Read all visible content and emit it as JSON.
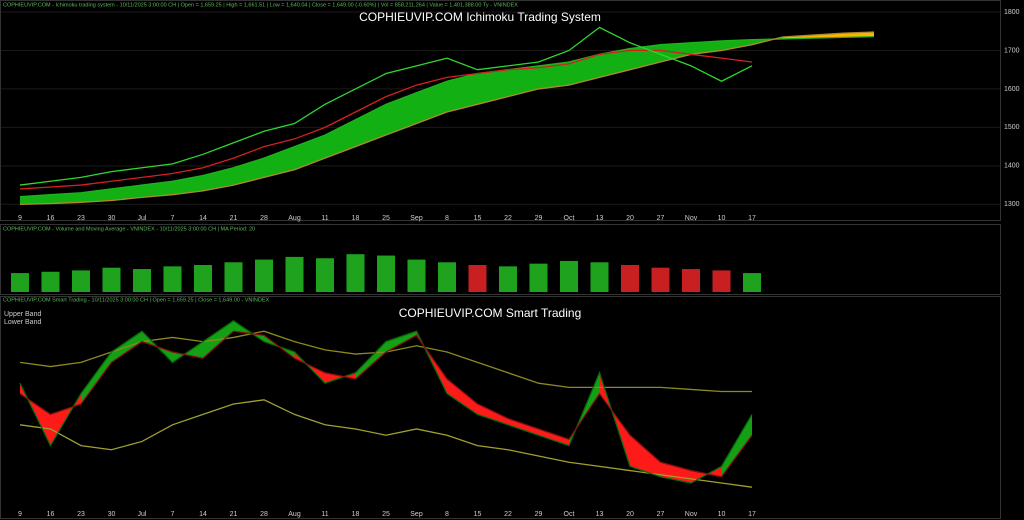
{
  "chart_data": [
    {
      "type": "line",
      "title": "COPHIEUVIP.COM Ichimoku Trading System",
      "header": "COPHIEUVIP.COM - Ichimoku trading system - 10/11/2025 3:00:00 CH | Open = 1,659.25 | High = 1,661.51 | Low = 1,640.04 | Close = 1,649.00 (-0.60%) | Vol = 858,211,264 | Value = 1,401,388.00 Ty - VNINDEX",
      "categories": [
        "9",
        "16",
        "23",
        "30",
        "Jul",
        "7",
        "14",
        "21",
        "28",
        "Aug",
        "11",
        "18",
        "25",
        "Sep",
        "8",
        "15",
        "22",
        "29",
        "Oct",
        "13",
        "20",
        "27",
        "Nov",
        "10",
        "17",
        null,
        null,
        null,
        null,
        null,
        null,
        null
      ],
      "ylim": [
        1280,
        1800
      ],
      "yticks": [
        1300,
        1400,
        1500,
        1600,
        1700,
        1800
      ],
      "series": [
        {
          "color": "#1db31d",
          "values": [
            1320,
            1325,
            1330,
            1340,
            1350,
            1360,
            1375,
            1395,
            1420,
            1450,
            1480,
            1520,
            1560,
            1590,
            1620,
            1640,
            1650,
            1660,
            1670,
            1690,
            1705,
            1715,
            1720,
            1725,
            1728,
            1730,
            1732,
            1734,
            1736,
            null,
            null,
            null
          ],
          "fill_with": 1,
          "fill_colors": [
            "#12b012",
            "#ffb300"
          ]
        },
        {
          "color": "#b08a2a",
          "values": [
            1300,
            1302,
            1305,
            1310,
            1318,
            1325,
            1335,
            1350,
            1370,
            1390,
            1420,
            1450,
            1480,
            1510,
            1540,
            1560,
            1580,
            1600,
            1610,
            1630,
            1650,
            1670,
            1690,
            1700,
            1715,
            1735,
            1740,
            1745,
            1748,
            null,
            null,
            null
          ]
        },
        {
          "color": "#d42020",
          "values": [
            1340,
            1345,
            1350,
            1360,
            1370,
            1380,
            1395,
            1420,
            1450,
            1470,
            1500,
            1540,
            1580,
            1610,
            1630,
            1640,
            1650,
            1655,
            1665,
            1690,
            1700,
            1700,
            1690,
            1680,
            1670,
            null,
            null,
            null,
            null,
            null,
            null,
            null
          ]
        },
        {
          "color": "#2ed82e",
          "values": [
            1350,
            1360,
            1370,
            1385,
            1395,
            1405,
            1430,
            1460,
            1490,
            1510,
            1560,
            1600,
            1640,
            1660,
            1680,
            1650,
            1660,
            1670,
            1700,
            1760,
            1720,
            1690,
            1660,
            1620,
            1660,
            null,
            null,
            null,
            null,
            null,
            null,
            null
          ]
        }
      ]
    },
    {
      "type": "bar",
      "header": "COPHIEUVIP.COM - Volume and Moving Average - VNINDEX - 10/11/2025 3:00:00 CH | MA Period: 20",
      "ylim": [
        0,
        2000
      ],
      "values": [
        700,
        750,
        800,
        900,
        850,
        950,
        1000,
        1100,
        1200,
        1300,
        1250,
        1400,
        1350,
        1200,
        1100,
        1000,
        950,
        1050,
        1150,
        1100,
        1000,
        900,
        850,
        800,
        700
      ],
      "colors": [
        "#1fa31f",
        "#1fa31f",
        "#1fa31f",
        "#1fa31f",
        "#1fa31f",
        "#1fa31f",
        "#1fa31f",
        "#1fa31f",
        "#1fa31f",
        "#1fa31f",
        "#1fa31f",
        "#1fa31f",
        "#1fa31f",
        "#1fa31f",
        "#1fa31f",
        "#c82020",
        "#1fa31f",
        "#1fa31f",
        "#1fa31f",
        "#1fa31f",
        "#c82020",
        "#c82020",
        "#c82020",
        "#c82020",
        "#1fa31f"
      ]
    },
    {
      "type": "line",
      "title": "COPHIEUVIP.COM Smart Trading",
      "header": "COPHIEUVIP.COM Smart Trading - 10/11/2025 3:00:00 CH | Open = 1,659.25 | Close = 1,649.00 - VNINDEX",
      "categories": [
        "9",
        "16",
        "23",
        "30",
        "Jul",
        "7",
        "14",
        "21",
        "28",
        "Aug",
        "11",
        "18",
        "25",
        "Sep",
        "8",
        "15",
        "22",
        "29",
        "Oct",
        "13",
        "20",
        "27",
        "Nov",
        "10",
        "17"
      ],
      "ylim": [
        0,
        100
      ],
      "series": [
        {
          "name": "Upper Band",
          "color": "#8a8a20",
          "values": [
            70,
            68,
            70,
            75,
            80,
            82,
            80,
            82,
            85,
            80,
            76,
            74,
            75,
            78,
            75,
            70,
            65,
            60,
            58,
            58,
            58,
            58,
            57,
            56,
            56
          ]
        },
        {
          "name": "Lower Band",
          "color": "#a0a030",
          "values": [
            40,
            38,
            30,
            28,
            32,
            40,
            45,
            50,
            52,
            45,
            40,
            38,
            35,
            38,
            35,
            30,
            28,
            25,
            22,
            20,
            18,
            16,
            14,
            12,
            10
          ]
        },
        {
          "color": "#0a6a0a",
          "values": [
            60,
            30,
            55,
            75,
            85,
            70,
            80,
            90,
            80,
            75,
            60,
            65,
            80,
            85,
            55,
            45,
            40,
            35,
            30,
            65,
            20,
            15,
            12,
            20,
            45
          ],
          "fill_with": 3,
          "fill_colors": [
            "#14a014",
            "#ff1a1a"
          ]
        },
        {
          "color": "#8a1010",
          "values": [
            55,
            45,
            50,
            70,
            80,
            75,
            72,
            85,
            83,
            72,
            65,
            62,
            75,
            83,
            62,
            50,
            43,
            38,
            33,
            55,
            35,
            22,
            18,
            15,
            35
          ]
        }
      ]
    }
  ]
}
